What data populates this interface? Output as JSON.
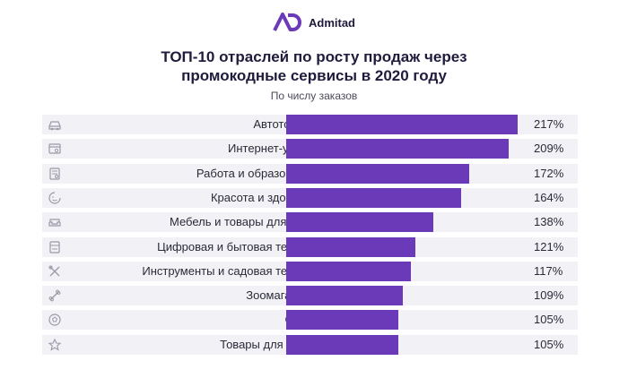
{
  "brand": {
    "name": "Admitad",
    "accent": "#6a3ab9"
  },
  "chart_data": {
    "type": "bar",
    "orientation": "horizontal",
    "title_lines": [
      "ТОП-10 отраслей по росту продаж через",
      "промокодные сервисы в 2020 году"
    ],
    "subtitle": "По числу заказов",
    "categories": [
      "Автотовары",
      "Интернет-услуги",
      "Работа и образование",
      "Красота и здоровье",
      "Мебель и товары для дома",
      "Цифровая и бытовая техника",
      "Инструменты и садовая техника",
      "Зоомагазины",
      "Спорт",
      "Товары для детей"
    ],
    "values": [
      217,
      209,
      172,
      164,
      138,
      121,
      117,
      109,
      105,
      105
    ],
    "value_labels": [
      "217%",
      "209%",
      "172%",
      "164%",
      "138%",
      "121%",
      "117%",
      "109%",
      "105%",
      "105%"
    ],
    "icons": [
      "car-icon",
      "browser-icon",
      "document-icon",
      "face-icon",
      "sofa-icon",
      "appliance-icon",
      "tools-icon",
      "bone-icon",
      "ball-icon",
      "star-icon"
    ],
    "unit": "%",
    "xlim": [
      0,
      217
    ],
    "bar_color": "#6a3ab9"
  }
}
